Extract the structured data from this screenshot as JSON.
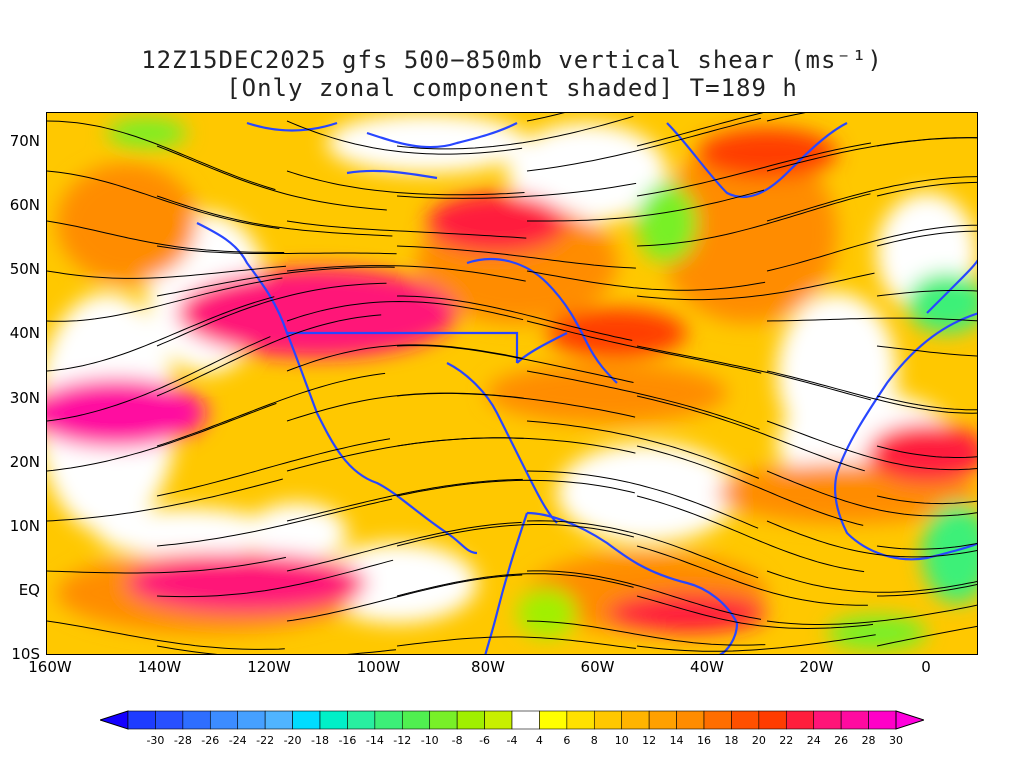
{
  "title_line1": "12Z15DEC2025 gfs 500−850mb vertical shear (ms⁻¹)",
  "title_line2": "[Only zonal component shaded] T=189 h",
  "y_axis": [
    "70N",
    "60N",
    "50N",
    "40N",
    "30N",
    "20N",
    "10N",
    "EQ",
    "10S"
  ],
  "x_axis": [
    "160W",
    "140W",
    "120W",
    "100W",
    "80W",
    "60W",
    "40W",
    "20W",
    "0"
  ],
  "colorbar": {
    "labels": [
      "-30",
      "-28",
      "-26",
      "-24",
      "-22",
      "-20",
      "-18",
      "-16",
      "-14",
      "-12",
      "-10",
      "-8",
      "-6",
      "-4",
      "4",
      "6",
      "8",
      "10",
      "12",
      "14",
      "16",
      "18",
      "20",
      "22",
      "24",
      "26",
      "28",
      "30"
    ],
    "colors": [
      "#1e3cff",
      "#2850ff",
      "#2e6eff",
      "#3c8cff",
      "#46a0ff",
      "#50b4ff",
      "#00dcff",
      "#00f0c8",
      "#28f0a0",
      "#3cf078",
      "#50f050",
      "#78f028",
      "#a0f000",
      "#c8f000",
      "#ffffff",
      "#ffff00",
      "#ffe100",
      "#ffc800",
      "#ffb400",
      "#ffa000",
      "#ff8c00",
      "#ff6e00",
      "#ff5000",
      "#ff3c00",
      "#ff1e3c",
      "#ff1478",
      "#ff0aa0",
      "#ff00c8"
    ],
    "min_color": "#1400ff",
    "max_color": "#ff00dc"
  },
  "map_colors": {
    "coast": "#2846ff",
    "streamline": "#000000"
  }
}
